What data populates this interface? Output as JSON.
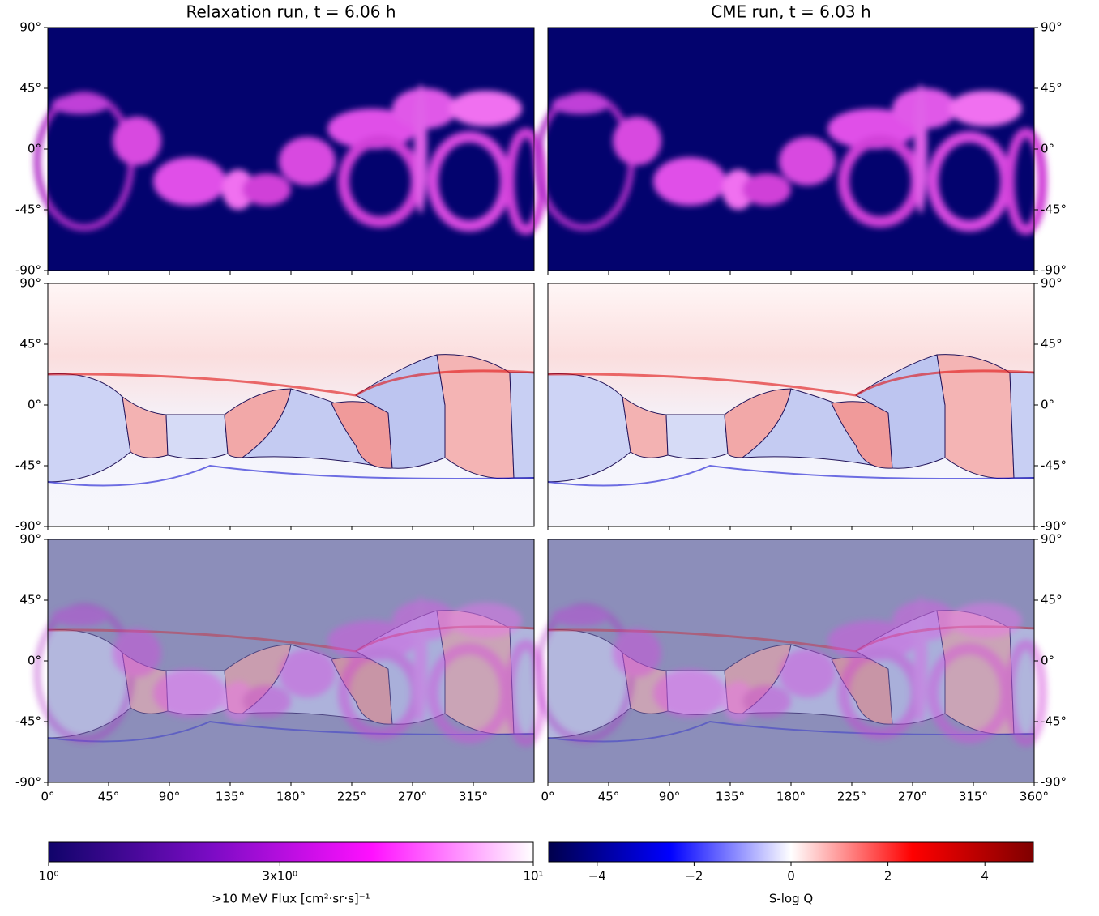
{
  "chart_data": {
    "type": "map-grid",
    "columns": [
      {
        "title": "Relaxation run, t = 6.06 h",
        "xticks": [
          {
            "value": 0,
            "label": "0°"
          },
          {
            "value": 45,
            "label": "45°"
          },
          {
            "value": 90,
            "label": "90°"
          },
          {
            "value": 135,
            "label": "135°"
          },
          {
            "value": 180,
            "label": "180°"
          },
          {
            "value": 225,
            "label": "225°"
          },
          {
            "value": 270,
            "label": "270°"
          },
          {
            "value": 315,
            "label": "315°"
          }
        ]
      },
      {
        "title": "CME run, t = 6.03 h",
        "xticks": [
          {
            "value": 0,
            "label": "0°"
          },
          {
            "value": 45,
            "label": "45°"
          },
          {
            "value": 90,
            "label": "90°"
          },
          {
            "value": 135,
            "label": "135°"
          },
          {
            "value": 180,
            "label": "180°"
          },
          {
            "value": 225,
            "label": "225°"
          },
          {
            "value": 270,
            "label": "270°"
          },
          {
            "value": 315,
            "label": "315°"
          },
          {
            "value": 360,
            "label": "360°"
          }
        ]
      }
    ],
    "xlim": [
      0,
      360
    ],
    "ylim": [
      -90,
      90
    ],
    "yticks": [
      {
        "value": 90,
        "label": "90°"
      },
      {
        "value": 45,
        "label": "45°"
      },
      {
        "value": 0,
        "label": "0°"
      },
      {
        "value": -45,
        "label": "-45°"
      },
      {
        "value": -90,
        "label": "-90°"
      }
    ],
    "colorbars": [
      {
        "label": ">10 MeV Flux [cm²·sr·s]⁻¹",
        "scale": "log",
        "lim": [
          1,
          10
        ],
        "ticks": [
          {
            "value": 1,
            "label": "10⁰"
          },
          {
            "value": 3,
            "label": "3x10⁰"
          },
          {
            "value": 10,
            "label": "10¹"
          }
        ],
        "colors": [
          "#10046a",
          "#7a0cc4",
          "#ff10ff",
          "#ffffff"
        ]
      },
      {
        "label": "S-log Q",
        "scale": "linear",
        "lim": [
          -5,
          5
        ],
        "ticks": [
          {
            "value": -4,
            "label": "−4"
          },
          {
            "value": -2,
            "label": "−2"
          },
          0,
          2,
          4
        ],
        "colors": [
          "#00004c",
          "#0000ff",
          "#ffffff",
          "#ff0000",
          "#7f0000"
        ]
      }
    ]
  }
}
